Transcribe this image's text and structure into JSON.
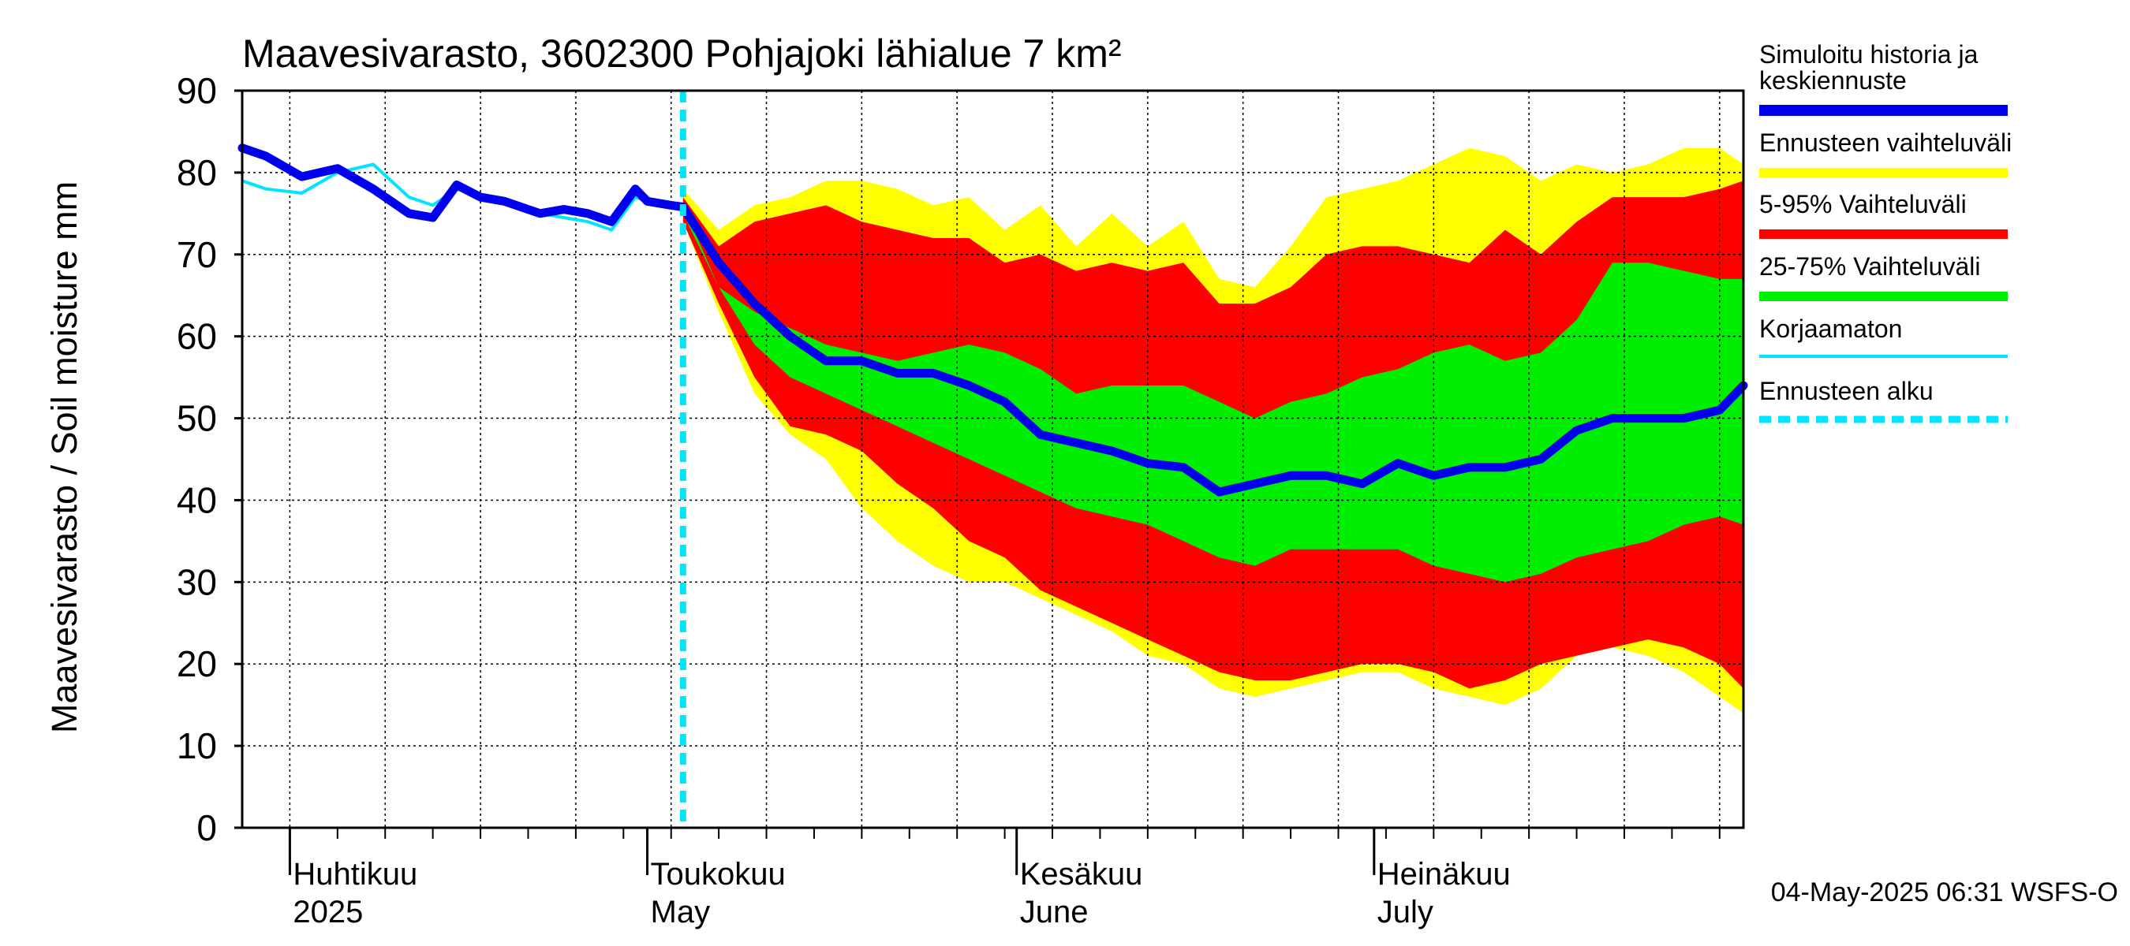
{
  "chart_data": {
    "type": "area",
    "title": "Maavesivarasto, 3602300 Pohjajoki lähialue 7 km²",
    "ylabel": "Maavesivarasto / Soil moisture   mm",
    "ylim": [
      0,
      90
    ],
    "yticks": [
      0,
      10,
      20,
      30,
      40,
      50,
      60,
      70,
      80,
      90
    ],
    "x_start": "2025-03-28",
    "x_end": "2025-08-01",
    "forecast_start": "2025-05-04",
    "month_labels": [
      {
        "fi": "Huhtikuu",
        "en": "2025",
        "date": "2025-04-01"
      },
      {
        "fi": "Toukokuu",
        "en": "May",
        "date": "2025-05-01"
      },
      {
        "fi": "Kesäkuu",
        "en": "June",
        "date": "2025-06-01"
      },
      {
        "fi": "Heinäkuu",
        "en": "July",
        "date": "2025-07-01"
      }
    ],
    "timestamp": "04-May-2025 06:31 WSFS-O",
    "legend": [
      {
        "key": "hist",
        "label": "Simuloitu historia ja keskiennuste",
        "color": "#0000ee"
      },
      {
        "key": "range",
        "label": "Ennusteen vaihteluväli",
        "color": "#ffff00"
      },
      {
        "key": "p595",
        "label": "5-95% Vaihteluväli",
        "color": "#ff0000"
      },
      {
        "key": "p2575",
        "label": "25-75% Vaihteluväli",
        "color": "#00ee00"
      },
      {
        "key": "uncorr",
        "label": "Korjaamaton",
        "color": "#00e5ff"
      },
      {
        "key": "start",
        "label": "Ennusteen alku",
        "color": "#00e5ff"
      }
    ],
    "history": {
      "x": [
        "2025-03-28",
        "2025-03-30",
        "2025-04-02",
        "2025-04-05",
        "2025-04-08",
        "2025-04-11",
        "2025-04-13",
        "2025-04-15",
        "2025-04-17",
        "2025-04-19",
        "2025-04-22",
        "2025-04-24",
        "2025-04-26",
        "2025-04-28",
        "2025-04-30",
        "2025-05-01",
        "2025-05-03",
        "2025-05-04"
      ],
      "simulated": [
        83,
        82,
        79.5,
        80.5,
        78,
        75,
        74.5,
        78.5,
        77,
        76.5,
        75,
        75.5,
        75,
        74,
        78,
        76.5,
        76,
        75.8
      ],
      "uncorrected": [
        79,
        78,
        77.5,
        80,
        81,
        77,
        76,
        78,
        77,
        76.5,
        75,
        74.5,
        74,
        73,
        77,
        76.5,
        76,
        75.8
      ]
    },
    "forecast": {
      "x": [
        "2025-05-04",
        "2025-05-07",
        "2025-05-10",
        "2025-05-13",
        "2025-05-16",
        "2025-05-19",
        "2025-05-22",
        "2025-05-25",
        "2025-05-28",
        "2025-05-31",
        "2025-06-03",
        "2025-06-06",
        "2025-06-09",
        "2025-06-12",
        "2025-06-15",
        "2025-06-18",
        "2025-06-21",
        "2025-06-24",
        "2025-06-27",
        "2025-06-30",
        "2025-07-03",
        "2025-07-06",
        "2025-07-09",
        "2025-07-12",
        "2025-07-15",
        "2025-07-18",
        "2025-07-21",
        "2025-07-24",
        "2025-07-27",
        "2025-07-30",
        "2025-08-01"
      ],
      "max": [
        78,
        73,
        76,
        77,
        79,
        79,
        78,
        76,
        77,
        73,
        76,
        71,
        75,
        71,
        74,
        67,
        66,
        71,
        77,
        78,
        79,
        81,
        83,
        82,
        79,
        81,
        80,
        81,
        83,
        83,
        81
      ],
      "p95": [
        77,
        71,
        74,
        75,
        76,
        74,
        73,
        72,
        72,
        69,
        70,
        68,
        69,
        68,
        69,
        64,
        64,
        66,
        70,
        71,
        71,
        70,
        69,
        73,
        70,
        74,
        77,
        77,
        77,
        78,
        79
      ],
      "p75": [
        76,
        66,
        63,
        61,
        59,
        58,
        57,
        58,
        59,
        58,
        56,
        53,
        54,
        54,
        54,
        52,
        50,
        52,
        53,
        55,
        56,
        58,
        59,
        57,
        58,
        62,
        69,
        69,
        68,
        67,
        67
      ],
      "median": [
        75.8,
        69,
        64,
        60,
        57,
        57,
        55.5,
        55.5,
        54,
        52,
        48,
        47,
        46,
        44.5,
        44,
        41,
        42,
        43,
        43,
        42,
        44.5,
        43,
        44,
        44,
        45,
        48.5,
        50,
        50,
        50,
        51,
        54
      ],
      "p25": [
        75,
        66,
        59,
        55,
        53,
        51,
        49,
        47,
        45,
        43,
        41,
        39,
        38,
        37,
        35,
        33,
        32,
        34,
        34,
        34,
        34,
        32,
        31,
        30,
        31,
        33,
        34,
        35,
        37,
        38,
        37
      ],
      "p5": [
        74,
        64,
        55,
        49,
        48,
        46,
        42,
        39,
        35,
        33,
        29,
        27,
        25,
        23,
        21,
        19,
        18,
        18,
        19,
        20,
        20,
        19,
        17,
        18,
        20,
        21,
        22,
        23,
        22,
        20,
        17
      ],
      "min": [
        74,
        63,
        53,
        48,
        45,
        39,
        35,
        32,
        30,
        30,
        28,
        26,
        24,
        21,
        20,
        17,
        16,
        17,
        18,
        19,
        19,
        17,
        16,
        15,
        17,
        21,
        22,
        21,
        19,
        16,
        14
      ]
    }
  }
}
